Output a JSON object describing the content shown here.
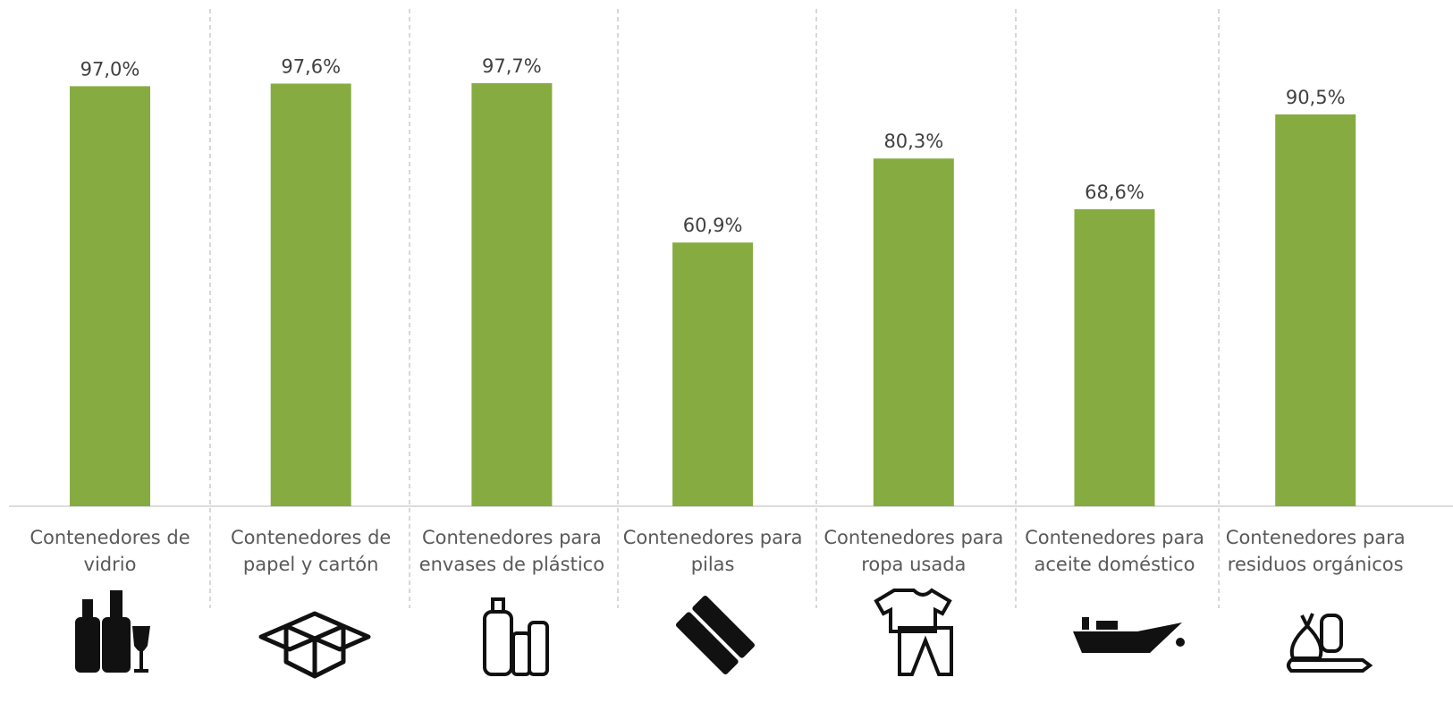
{
  "chart_data": {
    "type": "bar",
    "categories": [
      "Contenedores de vidrio",
      "Contenedores de papel y cartón",
      "Contenedores para envases de plástico",
      "Contenedores para pilas",
      "Contenedores para ropa usada",
      "Contenedores para aceite doméstico",
      "Contenedores para residuos orgánicos"
    ],
    "values": [
      97.0,
      97.6,
      97.7,
      60.9,
      80.3,
      68.6,
      90.5
    ],
    "value_labels": [
      "97,0%",
      "97,6%",
      "97,7%",
      "60,9%",
      "80,3%",
      "68,6%",
      "90,5%"
    ],
    "color": "#86ac41"
  }
}
